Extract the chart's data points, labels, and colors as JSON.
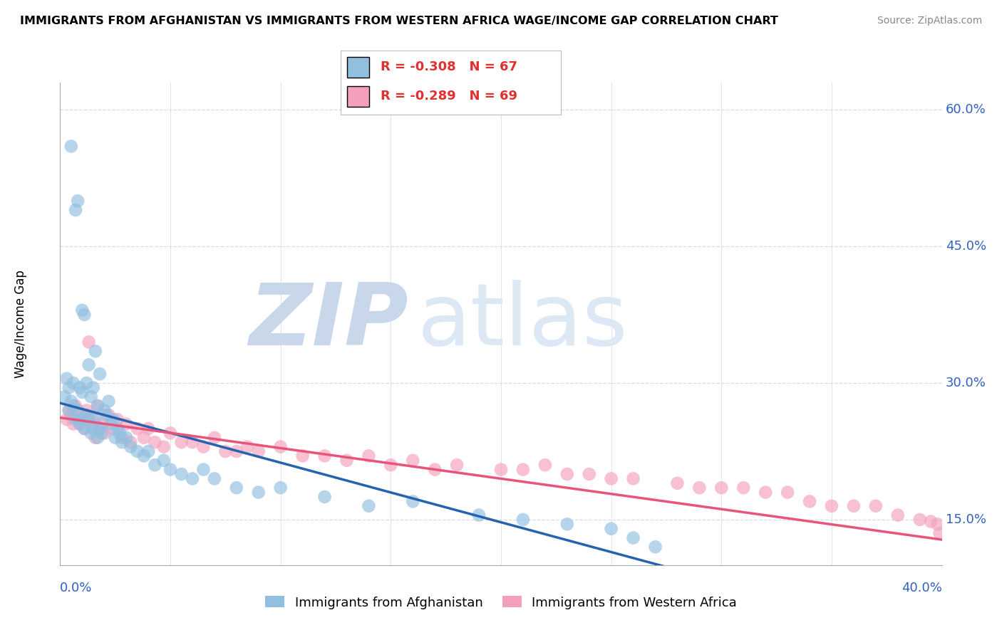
{
  "title": "IMMIGRANTS FROM AFGHANISTAN VS IMMIGRANTS FROM WESTERN AFRICA WAGE/INCOME GAP CORRELATION CHART",
  "source": "Source: ZipAtlas.com",
  "ylabel": "Wage/Income Gap",
  "xmin": 0.0,
  "xmax": 0.4,
  "ymin": 0.1,
  "ymax": 0.63,
  "afghanistan_R": -0.308,
  "afghanistan_N": 67,
  "western_africa_R": -0.289,
  "western_africa_N": 69,
  "afghanistan_color": "#90bfe0",
  "western_africa_color": "#f4a0bc",
  "afghanistan_line_color": "#2563ae",
  "western_africa_line_color": "#e8557a",
  "watermark_zip": "#c8d8ea",
  "watermark_atlas": "#dce8f4",
  "background_color": "#ffffff",
  "grid_color": "#d8d8e8",
  "right_ytick_positions": [
    0.15,
    0.3,
    0.45,
    0.6
  ],
  "right_ytick_labels": [
    "15.0%",
    "30.0%",
    "45.0%",
    "60.0%"
  ],
  "afghanistan_x": [
    0.002,
    0.003,
    0.004,
    0.004,
    0.005,
    0.005,
    0.006,
    0.006,
    0.007,
    0.007,
    0.008,
    0.008,
    0.009,
    0.009,
    0.01,
    0.01,
    0.01,
    0.011,
    0.011,
    0.012,
    0.012,
    0.013,
    0.013,
    0.014,
    0.014,
    0.015,
    0.015,
    0.016,
    0.016,
    0.017,
    0.017,
    0.018,
    0.018,
    0.019,
    0.02,
    0.021,
    0.022,
    0.023,
    0.024,
    0.025,
    0.026,
    0.027,
    0.028,
    0.03,
    0.032,
    0.035,
    0.038,
    0.04,
    0.043,
    0.047,
    0.05,
    0.055,
    0.06,
    0.065,
    0.07,
    0.08,
    0.09,
    0.1,
    0.12,
    0.14,
    0.16,
    0.19,
    0.21,
    0.23,
    0.25,
    0.26,
    0.27
  ],
  "afghanistan_y": [
    0.285,
    0.305,
    0.295,
    0.27,
    0.56,
    0.28,
    0.3,
    0.275,
    0.49,
    0.26,
    0.5,
    0.27,
    0.295,
    0.255,
    0.38,
    0.29,
    0.26,
    0.375,
    0.25,
    0.3,
    0.265,
    0.32,
    0.26,
    0.285,
    0.245,
    0.295,
    0.25,
    0.335,
    0.26,
    0.275,
    0.24,
    0.31,
    0.25,
    0.245,
    0.27,
    0.265,
    0.28,
    0.255,
    0.26,
    0.24,
    0.25,
    0.245,
    0.235,
    0.24,
    0.23,
    0.225,
    0.22,
    0.225,
    0.21,
    0.215,
    0.205,
    0.2,
    0.195,
    0.205,
    0.195,
    0.185,
    0.18,
    0.185,
    0.175,
    0.165,
    0.17,
    0.155,
    0.15,
    0.145,
    0.14,
    0.13,
    0.12
  ],
  "western_africa_x": [
    0.003,
    0.004,
    0.005,
    0.006,
    0.007,
    0.008,
    0.009,
    0.01,
    0.011,
    0.012,
    0.013,
    0.014,
    0.015,
    0.016,
    0.017,
    0.018,
    0.019,
    0.02,
    0.022,
    0.024,
    0.026,
    0.028,
    0.03,
    0.032,
    0.035,
    0.038,
    0.04,
    0.043,
    0.047,
    0.05,
    0.055,
    0.06,
    0.065,
    0.07,
    0.075,
    0.08,
    0.085,
    0.09,
    0.1,
    0.11,
    0.12,
    0.13,
    0.14,
    0.15,
    0.16,
    0.17,
    0.18,
    0.2,
    0.21,
    0.22,
    0.23,
    0.24,
    0.25,
    0.26,
    0.28,
    0.29,
    0.3,
    0.31,
    0.32,
    0.33,
    0.34,
    0.35,
    0.36,
    0.37,
    0.38,
    0.39,
    0.395,
    0.398,
    0.399
  ],
  "western_africa_y": [
    0.26,
    0.27,
    0.265,
    0.255,
    0.275,
    0.26,
    0.255,
    0.265,
    0.25,
    0.27,
    0.345,
    0.255,
    0.26,
    0.24,
    0.275,
    0.25,
    0.255,
    0.245,
    0.265,
    0.25,
    0.26,
    0.24,
    0.255,
    0.235,
    0.25,
    0.24,
    0.25,
    0.235,
    0.23,
    0.245,
    0.235,
    0.235,
    0.23,
    0.24,
    0.225,
    0.225,
    0.23,
    0.225,
    0.23,
    0.22,
    0.22,
    0.215,
    0.22,
    0.21,
    0.215,
    0.205,
    0.21,
    0.205,
    0.205,
    0.21,
    0.2,
    0.2,
    0.195,
    0.195,
    0.19,
    0.185,
    0.185,
    0.185,
    0.18,
    0.18,
    0.17,
    0.165,
    0.165,
    0.165,
    0.155,
    0.15,
    0.148,
    0.145,
    0.135
  ],
  "afg_line_x0": 0.0,
  "afg_line_x1": 0.275,
  "afg_line_y0": 0.278,
  "afg_line_y1": 0.098,
  "waf_line_x0": 0.0,
  "waf_line_x1": 0.4,
  "waf_line_y0": 0.262,
  "waf_line_y1": 0.128
}
